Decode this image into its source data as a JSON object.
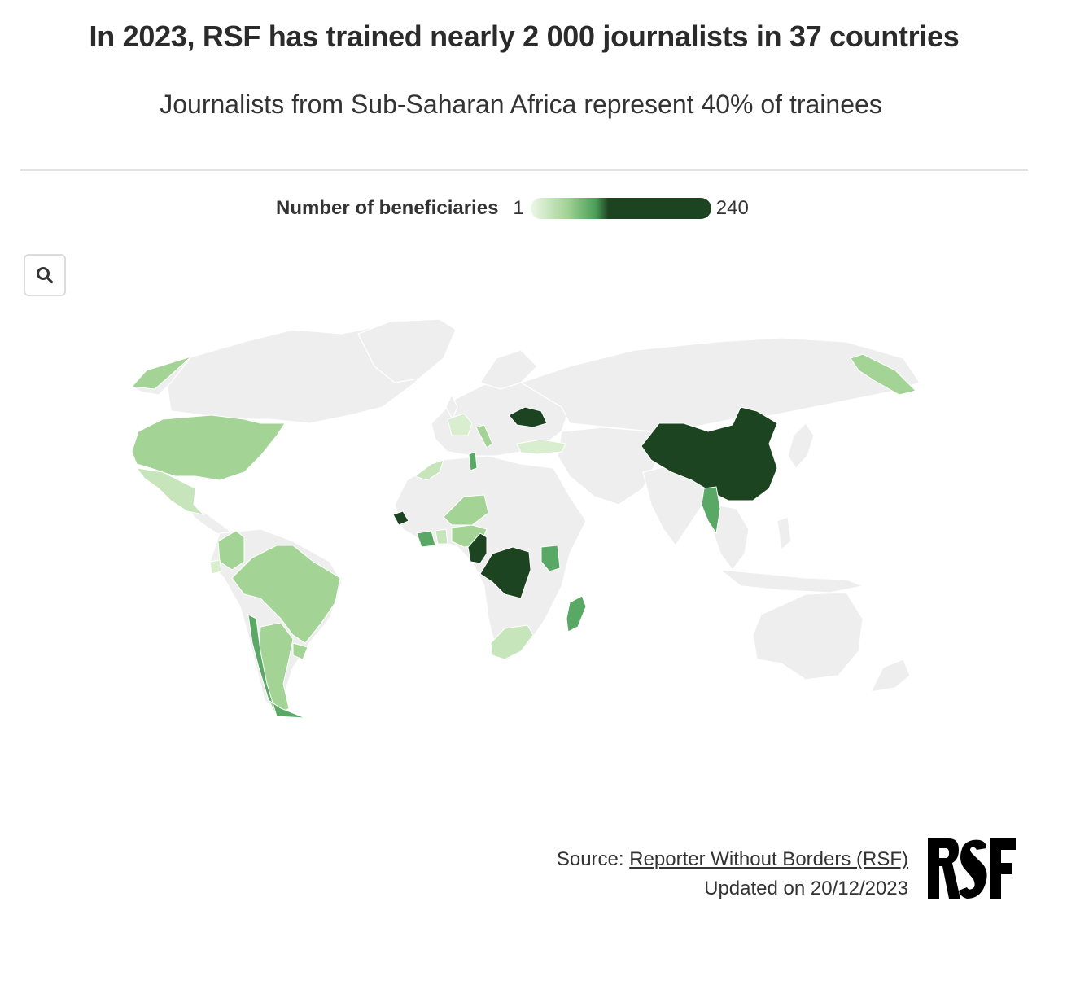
{
  "header": {
    "title": "In 2023, RSF has trained nearly 2 000 journalists in 37 countries",
    "subtitle": "Journalists from Sub-Saharan Africa represent 40% of trainees"
  },
  "legend": {
    "title": "Number of beneficiaries",
    "min_label": "1",
    "max_label": "240",
    "min_value": 1,
    "max_value": 240,
    "colors": [
      "#edf7e8",
      "#a4d396",
      "#4a9e58",
      "#1d4421"
    ]
  },
  "controls": {
    "search_icon": "search-icon"
  },
  "map": {
    "no_data_color": "#eeeeee",
    "highlighted_countries": [
      {
        "name": "China",
        "level": "high"
      },
      {
        "name": "Ukraine",
        "level": "high"
      },
      {
        "name": "Democratic Republic of the Congo",
        "level": "high"
      },
      {
        "name": "Cameroon",
        "level": "high"
      },
      {
        "name": "Senegal",
        "level": "high"
      },
      {
        "name": "Madagascar",
        "level": "mid"
      },
      {
        "name": "Kenya",
        "level": "mid"
      },
      {
        "name": "Ivory Coast",
        "level": "mid"
      },
      {
        "name": "Myanmar",
        "level": "mid"
      },
      {
        "name": "Chile",
        "level": "mid"
      },
      {
        "name": "Tunisia",
        "level": "mid"
      },
      {
        "name": "United States",
        "level": "low"
      },
      {
        "name": "Mexico",
        "level": "low"
      },
      {
        "name": "Brazil",
        "level": "low"
      },
      {
        "name": "Colombia",
        "level": "low"
      },
      {
        "name": "Argentina",
        "level": "low"
      },
      {
        "name": "Uruguay",
        "level": "low"
      },
      {
        "name": "Nigeria",
        "level": "low"
      },
      {
        "name": "Niger",
        "level": "low"
      },
      {
        "name": "South Africa",
        "level": "low"
      },
      {
        "name": "Russia (Far East)",
        "level": "low"
      },
      {
        "name": "Morocco",
        "level": "low"
      },
      {
        "name": "Turkey",
        "level": "very-low"
      },
      {
        "name": "France",
        "level": "very-low"
      },
      {
        "name": "Ecuador",
        "level": "very-low"
      }
    ]
  },
  "footer": {
    "source_prefix": "Source: ",
    "source_link": "Reporter Without Borders (RSF)",
    "updated": "Updated on 20/12/2023"
  },
  "logo": {
    "text": "RSF"
  }
}
